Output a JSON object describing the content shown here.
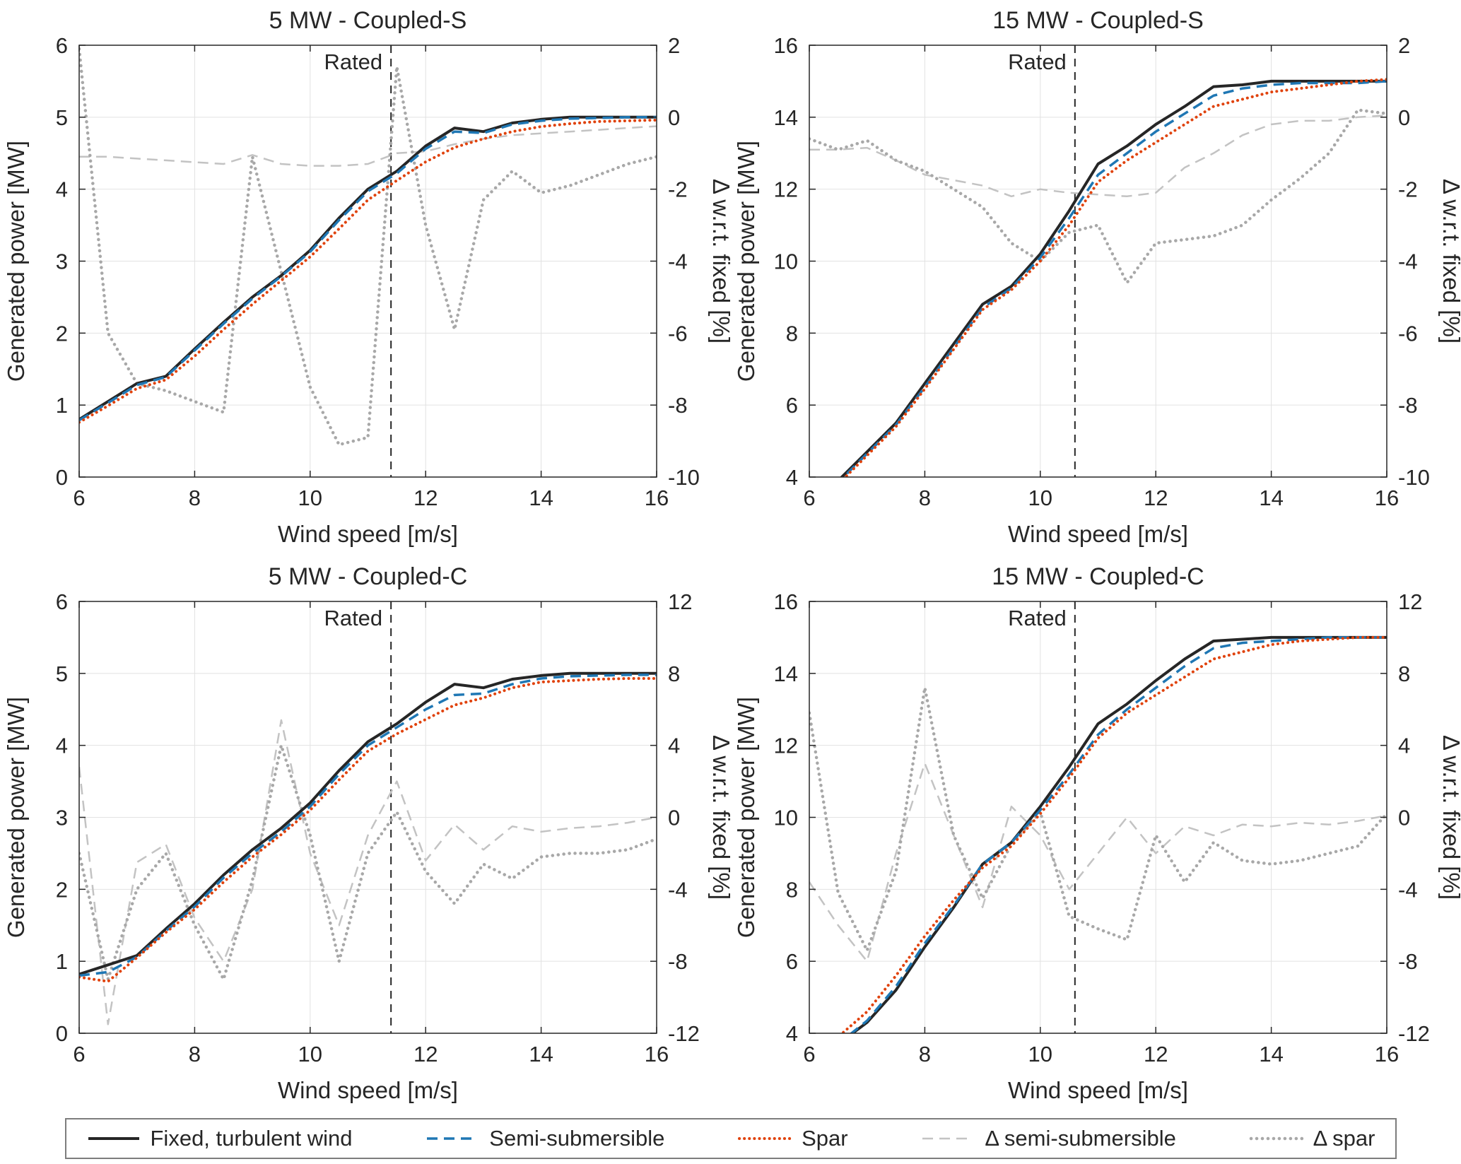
{
  "page": {
    "background": "#ffffff"
  },
  "colors": {
    "fixed": "#262626",
    "semi": "#1f77b4",
    "spar": "#e0420c",
    "delta_semi": "#c3c3c3",
    "delta_spar": "#a8a8a8",
    "grid": "#e2e2e2",
    "axis": "#262626"
  },
  "legend": {
    "items": [
      {
        "label": "Fixed, turbulent wind",
        "color": "#262626",
        "style": "solid",
        "width": 4
      },
      {
        "label": "Semi-submersible",
        "color": "#1f77b4",
        "style": "dashed",
        "width": 3.5
      },
      {
        "label": "Spar",
        "color": "#e0420c",
        "style": "dotted",
        "width": 4
      },
      {
        "label": "Δ semi-submersible",
        "color": "#c3c3c3",
        "style": "dashed",
        "width": 2.5
      },
      {
        "label": "Δ spar",
        "color": "#a8a8a8",
        "style": "dotted",
        "width": 4.5
      }
    ]
  },
  "chart_data": [
    {
      "type": "line",
      "title": "5 MW - Coupled-S",
      "xlabel": "Wind speed [m/s]",
      "ylabel_left": "Generated power [MW]",
      "ylabel_right": "Δ w.r.t. fixed [%]",
      "xlim": [
        6,
        16
      ],
      "xticks": [
        6,
        8,
        10,
        12,
        14,
        16
      ],
      "ylim_left": [
        0,
        6
      ],
      "yticks_left": [
        0,
        1,
        2,
        3,
        4,
        5,
        6
      ],
      "ylim_right": [
        -10,
        2
      ],
      "yticks_right": [
        -10,
        -8,
        -6,
        -4,
        -2,
        0,
        2
      ],
      "rated_x": 11.4,
      "rated_label": "Rated",
      "x": [
        6,
        6.5,
        7,
        7.5,
        8,
        8.5,
        9,
        9.5,
        10,
        10.5,
        11,
        11.5,
        12,
        12.5,
        13,
        13.5,
        14,
        14.5,
        15,
        15.5,
        16
      ],
      "series": [
        {
          "name": "Fixed, turbulent wind",
          "axis": "left",
          "values": [
            0.8,
            1.05,
            1.3,
            1.4,
            1.78,
            2.15,
            2.5,
            2.8,
            3.15,
            3.6,
            4.0,
            4.25,
            4.6,
            4.85,
            4.8,
            4.92,
            4.97,
            5.0,
            5.0,
            5.0,
            5.0
          ]
        },
        {
          "name": "Semi-submersible",
          "axis": "left",
          "values": [
            0.79,
            1.03,
            1.28,
            1.39,
            1.76,
            2.13,
            2.48,
            2.79,
            3.13,
            3.57,
            3.97,
            4.22,
            4.56,
            4.8,
            4.78,
            4.9,
            4.95,
            4.98,
            4.99,
            5.0,
            5.0
          ]
        },
        {
          "name": "Spar",
          "axis": "left",
          "values": [
            0.76,
            0.99,
            1.23,
            1.35,
            1.68,
            2.05,
            2.4,
            2.73,
            3.06,
            3.45,
            3.85,
            4.12,
            4.38,
            4.58,
            4.7,
            4.8,
            4.87,
            4.91,
            4.94,
            4.95,
            4.96
          ]
        },
        {
          "name": "Δ semi-submersible",
          "axis": "right",
          "values": [
            -1.1,
            -1.1,
            -1.15,
            -1.2,
            -1.25,
            -1.3,
            -1.05,
            -1.3,
            -1.35,
            -1.35,
            -1.3,
            -1.0,
            -0.95,
            -0.75,
            -0.6,
            -0.5,
            -0.45,
            -0.4,
            -0.35,
            -0.3,
            -0.25
          ]
        },
        {
          "name": "Δ spar",
          "axis": "right",
          "values": [
            1.9,
            -6.0,
            -7.4,
            -7.6,
            -7.9,
            -8.2,
            -1.1,
            -4.3,
            -7.5,
            -9.1,
            -8.9,
            1.4,
            -3.0,
            -5.9,
            -2.3,
            -1.5,
            -2.1,
            -1.9,
            -1.6,
            -1.3,
            -1.1
          ]
        }
      ]
    },
    {
      "type": "line",
      "title": "15 MW - Coupled-S",
      "xlabel": "Wind speed [m/s]",
      "ylabel_left": "Generated power [MW]",
      "ylabel_right": "Δ w.r.t. fixed [%]",
      "xlim": [
        6,
        16
      ],
      "xticks": [
        6,
        8,
        10,
        12,
        14,
        16
      ],
      "ylim_left": [
        4,
        16
      ],
      "yticks_left": [
        4,
        6,
        8,
        10,
        12,
        14,
        16
      ],
      "ylim_right": [
        -10,
        2
      ],
      "yticks_right": [
        -10,
        -8,
        -6,
        -4,
        -2,
        0,
        2
      ],
      "rated_x": 10.6,
      "rated_label": "Rated",
      "x": [
        6,
        6.5,
        7,
        7.5,
        8,
        8.5,
        9,
        9.5,
        10,
        10.5,
        11,
        11.5,
        12,
        12.5,
        13,
        13.5,
        14,
        14.5,
        15,
        15.5,
        16
      ],
      "series": [
        {
          "name": "Fixed, turbulent wind",
          "axis": "left",
          "values": [
            3.2,
            3.9,
            4.7,
            5.5,
            6.6,
            7.7,
            8.8,
            9.3,
            10.2,
            11.4,
            12.7,
            13.2,
            13.8,
            14.3,
            14.85,
            14.9,
            15.0,
            15.0,
            15.0,
            15.0,
            15.0
          ]
        },
        {
          "name": "Semi-submersible",
          "axis": "left",
          "values": [
            3.15,
            3.85,
            4.65,
            5.45,
            6.5,
            7.6,
            8.7,
            9.25,
            10.1,
            11.2,
            12.4,
            13.0,
            13.6,
            14.1,
            14.6,
            14.8,
            14.9,
            14.95,
            14.95,
            14.95,
            15.0
          ]
        },
        {
          "name": "Spar",
          "axis": "left",
          "values": [
            3.1,
            3.8,
            4.6,
            5.4,
            6.45,
            7.55,
            8.65,
            9.2,
            10.0,
            11.0,
            12.2,
            12.8,
            13.3,
            13.8,
            14.3,
            14.5,
            14.7,
            14.8,
            14.9,
            15.0,
            15.05
          ]
        },
        {
          "name": "Δ semi-submersible",
          "axis": "right",
          "values": [
            -0.9,
            -0.9,
            -0.85,
            -1.2,
            -1.6,
            -1.75,
            -1.9,
            -2.2,
            -2.0,
            -2.1,
            -2.15,
            -2.2,
            -2.1,
            -1.4,
            -1.0,
            -0.5,
            -0.2,
            -0.1,
            -0.1,
            0.0,
            0.05
          ]
        },
        {
          "name": "Δ spar",
          "axis": "right",
          "values": [
            -0.6,
            -0.9,
            -0.65,
            -1.2,
            -1.5,
            -2.0,
            -2.5,
            -3.5,
            -4.0,
            -3.2,
            -3.0,
            -4.6,
            -3.5,
            -3.4,
            -3.3,
            -3.0,
            -2.3,
            -1.7,
            -1.0,
            0.2,
            0.1
          ]
        }
      ]
    },
    {
      "type": "line",
      "title": "5 MW - Coupled-C",
      "xlabel": "Wind speed [m/s]",
      "ylabel_left": "Generated power [MW]",
      "ylabel_right": "Δ w.r.t. fixed [%]",
      "xlim": [
        6,
        16
      ],
      "xticks": [
        6,
        8,
        10,
        12,
        14,
        16
      ],
      "ylim_left": [
        0,
        6
      ],
      "yticks_left": [
        0,
        1,
        2,
        3,
        4,
        5,
        6
      ],
      "ylim_right": [
        -12,
        12
      ],
      "yticks_right": [
        -12,
        -8,
        -4,
        0,
        4,
        8,
        12
      ],
      "rated_x": 11.4,
      "rated_label": "Rated",
      "x": [
        6,
        6.5,
        7,
        7.5,
        8,
        8.5,
        9,
        9.5,
        10,
        10.5,
        11,
        11.5,
        12,
        12.5,
        13,
        13.5,
        14,
        14.5,
        15,
        15.5,
        16
      ],
      "series": [
        {
          "name": "Fixed, turbulent wind",
          "axis": "left",
          "values": [
            0.82,
            0.95,
            1.08,
            1.45,
            1.8,
            2.2,
            2.55,
            2.85,
            3.2,
            3.65,
            4.05,
            4.3,
            4.6,
            4.85,
            4.8,
            4.92,
            4.97,
            5.0,
            5.0,
            5.0,
            5.0
          ]
        },
        {
          "name": "Semi-submersible",
          "axis": "left",
          "values": [
            0.8,
            0.85,
            1.06,
            1.42,
            1.76,
            2.16,
            2.5,
            2.8,
            3.15,
            3.6,
            4.0,
            4.25,
            4.5,
            4.7,
            4.72,
            4.85,
            4.93,
            4.96,
            4.97,
            4.98,
            4.98
          ]
        },
        {
          "name": "Spar",
          "axis": "left",
          "values": [
            0.78,
            0.72,
            1.05,
            1.4,
            1.72,
            2.1,
            2.45,
            2.76,
            3.1,
            3.52,
            3.92,
            4.16,
            4.36,
            4.56,
            4.66,
            4.8,
            4.88,
            4.9,
            4.92,
            4.93,
            4.93
          ]
        },
        {
          "name": "Δ semi-submersible",
          "axis": "right",
          "values": [
            2.8,
            -11.5,
            -2.5,
            -1.5,
            -5.6,
            -8.0,
            -4.0,
            5.4,
            -2.0,
            -6.0,
            -1.0,
            2.0,
            -2.4,
            -0.4,
            -1.8,
            -0.5,
            -0.8,
            -0.6,
            -0.5,
            -0.3,
            0.0
          ]
        },
        {
          "name": "Δ spar",
          "axis": "right",
          "values": [
            -2.0,
            -9.0,
            -4.0,
            -2.0,
            -6.0,
            -9.0,
            -3.5,
            4.0,
            -1.0,
            -8.0,
            -2.0,
            0.3,
            -3.0,
            -4.8,
            -2.6,
            -3.4,
            -2.2,
            -2.0,
            -2.0,
            -1.8,
            -1.2
          ]
        }
      ]
    },
    {
      "type": "line",
      "title": "15 MW - Coupled-C",
      "xlabel": "Wind speed [m/s]",
      "ylabel_left": "Generated power [MW]",
      "ylabel_right": "Δ w.r.t. fixed [%]",
      "xlim": [
        6,
        16
      ],
      "xticks": [
        6,
        8,
        10,
        12,
        14,
        16
      ],
      "ylim_left": [
        4,
        16
      ],
      "yticks_left": [
        4,
        6,
        8,
        10,
        12,
        14,
        16
      ],
      "ylim_right": [
        -12,
        12
      ],
      "yticks_right": [
        -12,
        -8,
        -4,
        0,
        4,
        8,
        12
      ],
      "rated_x": 10.6,
      "rated_label": "Rated",
      "x": [
        6,
        6.5,
        7,
        7.5,
        8,
        8.5,
        9,
        9.5,
        10,
        10.5,
        11,
        11.5,
        12,
        12.5,
        13,
        13.5,
        14,
        14.5,
        15,
        15.5,
        16
      ],
      "series": [
        {
          "name": "Fixed, turbulent wind",
          "axis": "left",
          "values": [
            3.1,
            3.7,
            4.3,
            5.2,
            6.4,
            7.5,
            8.7,
            9.3,
            10.3,
            11.4,
            12.6,
            13.15,
            13.8,
            14.4,
            14.9,
            14.95,
            15.0,
            15.0,
            15.0,
            15.0,
            15.0
          ]
        },
        {
          "name": "Semi-submersible",
          "axis": "left",
          "values": [
            3.1,
            3.7,
            4.35,
            5.3,
            6.5,
            7.55,
            8.7,
            9.3,
            10.2,
            11.2,
            12.3,
            13.0,
            13.6,
            14.2,
            14.7,
            14.85,
            14.9,
            14.95,
            15.0,
            15.0,
            15.0
          ]
        },
        {
          "name": "Spar",
          "axis": "left",
          "values": [
            3.2,
            3.9,
            4.6,
            5.6,
            6.7,
            7.7,
            8.6,
            9.2,
            10.1,
            11.1,
            12.2,
            12.9,
            13.4,
            13.9,
            14.4,
            14.6,
            14.8,
            14.9,
            14.95,
            15.0,
            15.0
          ]
        },
        {
          "name": "Δ semi-submersible",
          "axis": "right",
          "values": [
            -3.6,
            -6.0,
            -8.0,
            -2.0,
            3.0,
            -1.0,
            -5.0,
            0.6,
            -1.0,
            -4.0,
            -2.0,
            0.0,
            -2.0,
            -0.5,
            -1.0,
            -0.4,
            -0.5,
            -0.3,
            -0.4,
            -0.2,
            0.1
          ]
        },
        {
          "name": "Δ spar",
          "axis": "right",
          "values": [
            5.8,
            -4.2,
            -7.4,
            -3.0,
            7.2,
            -1.0,
            -4.5,
            -1.5,
            0.3,
            -5.5,
            -6.2,
            -6.8,
            -1.0,
            -3.6,
            -1.4,
            -2.4,
            -2.6,
            -2.4,
            -2.0,
            -1.6,
            0.2
          ]
        }
      ]
    }
  ]
}
